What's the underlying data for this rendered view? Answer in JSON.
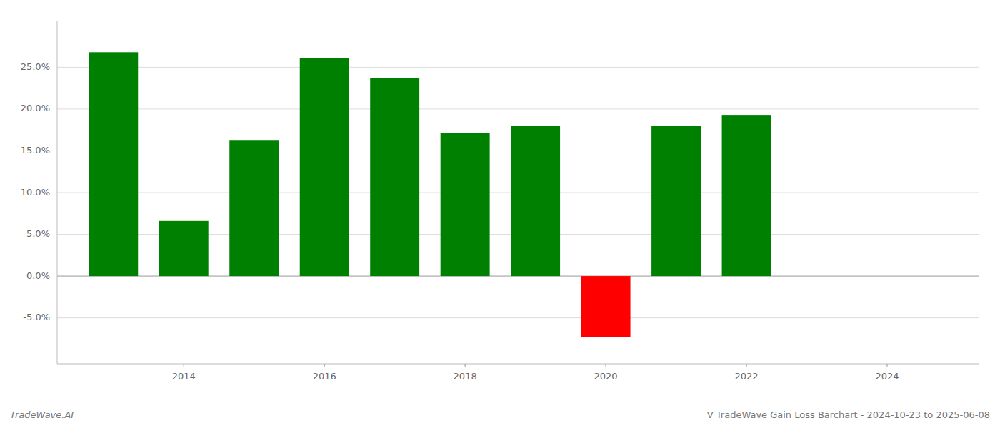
{
  "chart_data": {
    "type": "bar",
    "title": "V TradeWave Gain Loss Barchart - 2024-10-23 to 2025-06-08",
    "annotations": [
      "TradeWave.AI"
    ],
    "x": [
      2013,
      2014,
      2015,
      2016,
      2017,
      2018,
      2019,
      2020,
      2021,
      2022
    ],
    "values": [
      0.268,
      0.066,
      0.163,
      0.261,
      0.237,
      0.171,
      0.18,
      -0.073,
      0.18,
      0.193
    ],
    "colors": [
      "#008000",
      "#008000",
      "#008000",
      "#008000",
      "#008000",
      "#008000",
      "#008000",
      "#FF0000",
      "#008000",
      "#008000"
    ],
    "xlim": [
      2012.2,
      2025.3
    ],
    "xticks": [
      2014,
      2016,
      2018,
      2020,
      2022,
      2024
    ],
    "ylim": [
      -0.105,
      0.305
    ],
    "yticks": [
      {
        "value": -0.05,
        "label": "-5.0%"
      },
      {
        "value": 0.0,
        "label": "0.0%"
      },
      {
        "value": 0.05,
        "label": "5.0%"
      },
      {
        "value": 0.1,
        "label": "10.0%"
      },
      {
        "value": 0.15,
        "label": "15.0%"
      },
      {
        "value": 0.2,
        "label": "20.0%"
      },
      {
        "value": 0.25,
        "label": "25.0%"
      }
    ],
    "grid": true
  }
}
